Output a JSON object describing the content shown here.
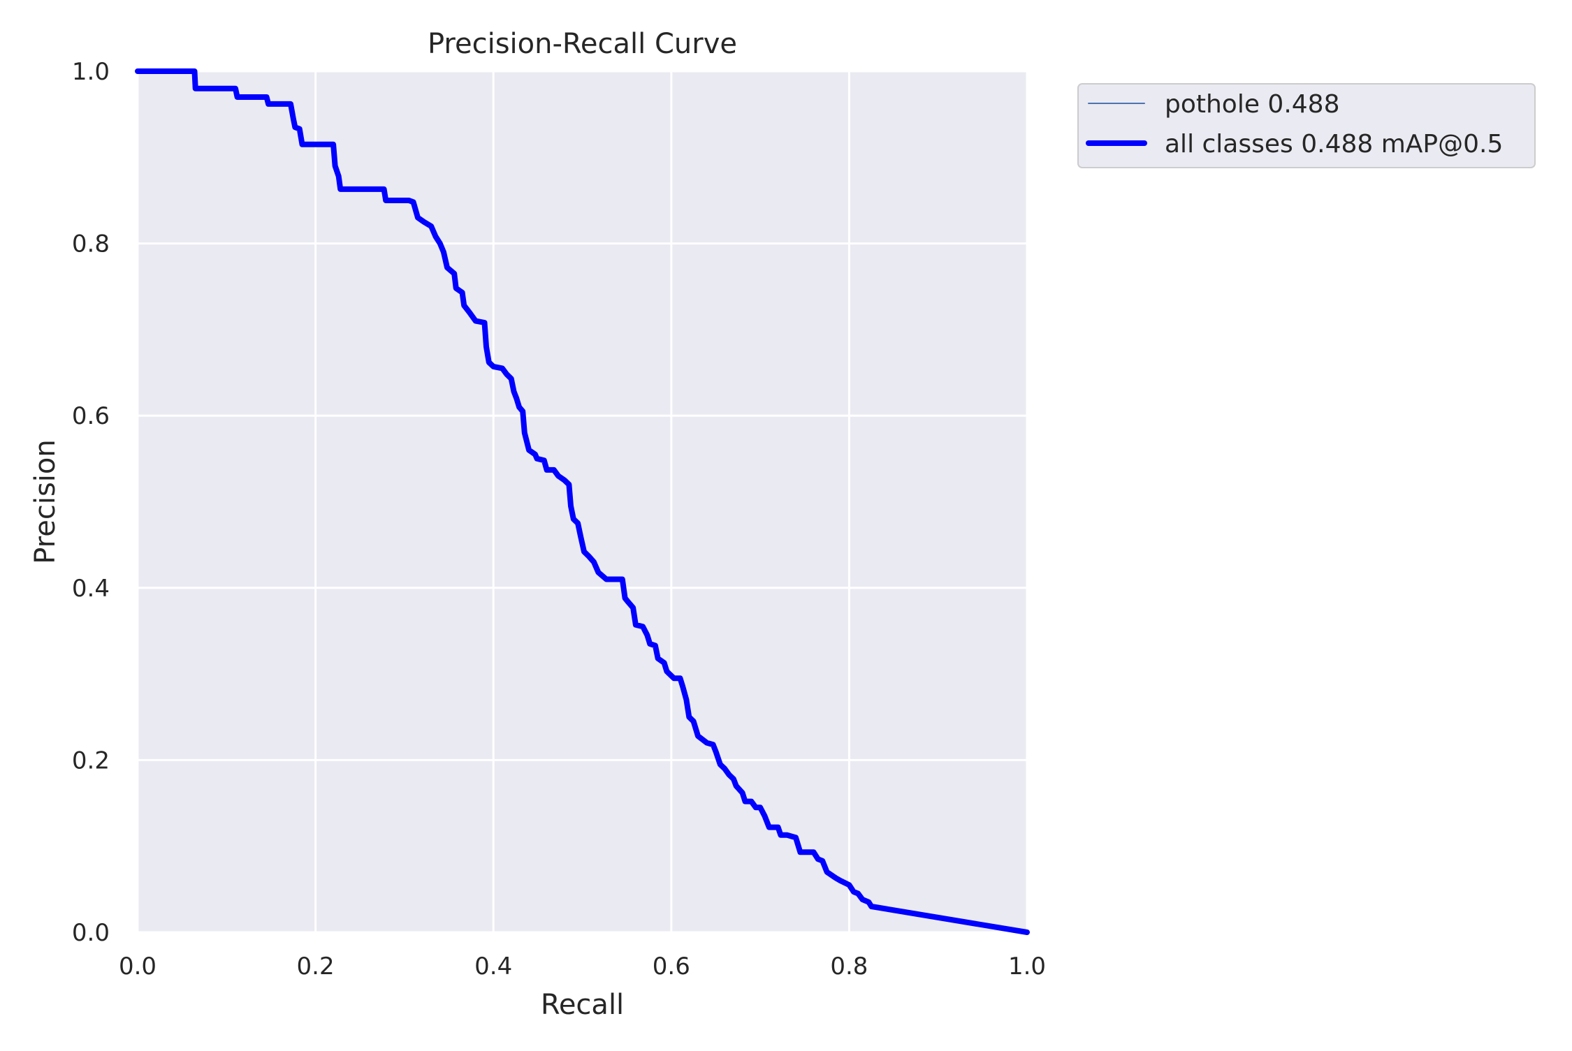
{
  "chart_data": {
    "type": "line",
    "title": "Precision-Recall Curve",
    "xlabel": "Recall",
    "ylabel": "Precision",
    "xlim": [
      0,
      1
    ],
    "ylim": [
      0,
      1
    ],
    "xticks": [
      "0.0",
      "0.2",
      "0.4",
      "0.6",
      "0.8",
      "1.0"
    ],
    "yticks": [
      "0.0",
      "0.2",
      "0.4",
      "0.6",
      "0.8",
      "1.0"
    ],
    "grid": true,
    "background": "#eaeaf2",
    "legend_position": "outside-top-right",
    "legend": [
      "pothole 0.488",
      "all classes 0.488 mAP@0.5"
    ],
    "series": [
      {
        "name": "pothole 0.488",
        "color": "#4c72b0",
        "points": [
          [
            0.0,
            1.0
          ],
          [
            0.064,
            1.0
          ],
          [
            0.065,
            0.98
          ],
          [
            0.11,
            0.98
          ],
          [
            0.112,
            0.97
          ],
          [
            0.145,
            0.97
          ],
          [
            0.147,
            0.962
          ],
          [
            0.172,
            0.962
          ],
          [
            0.175,
            0.945
          ],
          [
            0.177,
            0.935
          ],
          [
            0.182,
            0.933
          ],
          [
            0.185,
            0.915
          ],
          [
            0.22,
            0.915
          ],
          [
            0.222,
            0.89
          ],
          [
            0.226,
            0.878
          ],
          [
            0.228,
            0.863
          ],
          [
            0.277,
            0.863
          ],
          [
            0.279,
            0.85
          ],
          [
            0.305,
            0.85
          ],
          [
            0.31,
            0.848
          ],
          [
            0.315,
            0.83
          ],
          [
            0.322,
            0.825
          ],
          [
            0.33,
            0.82
          ],
          [
            0.335,
            0.808
          ],
          [
            0.34,
            0.8
          ],
          [
            0.344,
            0.79
          ],
          [
            0.348,
            0.772
          ],
          [
            0.356,
            0.765
          ],
          [
            0.358,
            0.748
          ],
          [
            0.365,
            0.743
          ],
          [
            0.367,
            0.728
          ],
          [
            0.373,
            0.72
          ],
          [
            0.38,
            0.71
          ],
          [
            0.39,
            0.708
          ],
          [
            0.392,
            0.68
          ],
          [
            0.395,
            0.662
          ],
          [
            0.4,
            0.657
          ],
          [
            0.41,
            0.655
          ],
          [
            0.415,
            0.648
          ],
          [
            0.42,
            0.643
          ],
          [
            0.423,
            0.628
          ],
          [
            0.426,
            0.62
          ],
          [
            0.429,
            0.61
          ],
          [
            0.433,
            0.605
          ],
          [
            0.435,
            0.58
          ],
          [
            0.44,
            0.56
          ],
          [
            0.447,
            0.555
          ],
          [
            0.449,
            0.55
          ],
          [
            0.457,
            0.548
          ],
          [
            0.46,
            0.537
          ],
          [
            0.468,
            0.537
          ],
          [
            0.473,
            0.53
          ],
          [
            0.48,
            0.525
          ],
          [
            0.485,
            0.52
          ],
          [
            0.487,
            0.495
          ],
          [
            0.49,
            0.48
          ],
          [
            0.495,
            0.475
          ],
          [
            0.498,
            0.46
          ],
          [
            0.502,
            0.442
          ],
          [
            0.507,
            0.437
          ],
          [
            0.513,
            0.43
          ],
          [
            0.518,
            0.418
          ],
          [
            0.527,
            0.41
          ],
          [
            0.545,
            0.41
          ],
          [
            0.548,
            0.388
          ],
          [
            0.552,
            0.383
          ],
          [
            0.557,
            0.377
          ],
          [
            0.56,
            0.357
          ],
          [
            0.568,
            0.355
          ],
          [
            0.573,
            0.345
          ],
          [
            0.576,
            0.335
          ],
          [
            0.582,
            0.333
          ],
          [
            0.585,
            0.318
          ],
          [
            0.592,
            0.313
          ],
          [
            0.595,
            0.303
          ],
          [
            0.603,
            0.295
          ],
          [
            0.61,
            0.295
          ],
          [
            0.613,
            0.285
          ],
          [
            0.617,
            0.27
          ],
          [
            0.62,
            0.25
          ],
          [
            0.625,
            0.245
          ],
          [
            0.63,
            0.228
          ],
          [
            0.64,
            0.22
          ],
          [
            0.647,
            0.218
          ],
          [
            0.65,
            0.21
          ],
          [
            0.655,
            0.195
          ],
          [
            0.66,
            0.19
          ],
          [
            0.665,
            0.183
          ],
          [
            0.67,
            0.178
          ],
          [
            0.673,
            0.17
          ],
          [
            0.68,
            0.162
          ],
          [
            0.683,
            0.152
          ],
          [
            0.69,
            0.152
          ],
          [
            0.695,
            0.145
          ],
          [
            0.7,
            0.145
          ],
          [
            0.705,
            0.135
          ],
          [
            0.71,
            0.122
          ],
          [
            0.72,
            0.122
          ],
          [
            0.723,
            0.113
          ],
          [
            0.73,
            0.113
          ],
          [
            0.74,
            0.11
          ],
          [
            0.745,
            0.093
          ],
          [
            0.76,
            0.093
          ],
          [
            0.765,
            0.085
          ],
          [
            0.77,
            0.083
          ],
          [
            0.775,
            0.07
          ],
          [
            0.785,
            0.063
          ],
          [
            0.79,
            0.06
          ],
          [
            0.8,
            0.055
          ],
          [
            0.805,
            0.047
          ],
          [
            0.81,
            0.045
          ],
          [
            0.815,
            0.038
          ],
          [
            0.822,
            0.035
          ],
          [
            0.825,
            0.03
          ],
          [
            1.0,
            0.0
          ]
        ]
      },
      {
        "name": "all classes 0.488 mAP@0.5",
        "color": "#0000ff",
        "points": [
          [
            0.0,
            1.0
          ],
          [
            0.064,
            1.0
          ],
          [
            0.065,
            0.98
          ],
          [
            0.11,
            0.98
          ],
          [
            0.112,
            0.97
          ],
          [
            0.145,
            0.97
          ],
          [
            0.147,
            0.962
          ],
          [
            0.172,
            0.962
          ],
          [
            0.175,
            0.945
          ],
          [
            0.177,
            0.935
          ],
          [
            0.182,
            0.933
          ],
          [
            0.185,
            0.915
          ],
          [
            0.22,
            0.915
          ],
          [
            0.222,
            0.89
          ],
          [
            0.226,
            0.878
          ],
          [
            0.228,
            0.863
          ],
          [
            0.277,
            0.863
          ],
          [
            0.279,
            0.85
          ],
          [
            0.305,
            0.85
          ],
          [
            0.31,
            0.848
          ],
          [
            0.315,
            0.83
          ],
          [
            0.322,
            0.825
          ],
          [
            0.33,
            0.82
          ],
          [
            0.335,
            0.808
          ],
          [
            0.34,
            0.8
          ],
          [
            0.344,
            0.79
          ],
          [
            0.348,
            0.772
          ],
          [
            0.356,
            0.765
          ],
          [
            0.358,
            0.748
          ],
          [
            0.365,
            0.743
          ],
          [
            0.367,
            0.728
          ],
          [
            0.373,
            0.72
          ],
          [
            0.38,
            0.71
          ],
          [
            0.39,
            0.708
          ],
          [
            0.392,
            0.68
          ],
          [
            0.395,
            0.662
          ],
          [
            0.4,
            0.657
          ],
          [
            0.41,
            0.655
          ],
          [
            0.415,
            0.648
          ],
          [
            0.42,
            0.643
          ],
          [
            0.423,
            0.628
          ],
          [
            0.426,
            0.62
          ],
          [
            0.429,
            0.61
          ],
          [
            0.433,
            0.605
          ],
          [
            0.435,
            0.58
          ],
          [
            0.44,
            0.56
          ],
          [
            0.447,
            0.555
          ],
          [
            0.449,
            0.55
          ],
          [
            0.457,
            0.548
          ],
          [
            0.46,
            0.537
          ],
          [
            0.468,
            0.537
          ],
          [
            0.473,
            0.53
          ],
          [
            0.48,
            0.525
          ],
          [
            0.485,
            0.52
          ],
          [
            0.487,
            0.495
          ],
          [
            0.49,
            0.48
          ],
          [
            0.495,
            0.475
          ],
          [
            0.498,
            0.46
          ],
          [
            0.502,
            0.442
          ],
          [
            0.507,
            0.437
          ],
          [
            0.513,
            0.43
          ],
          [
            0.518,
            0.418
          ],
          [
            0.527,
            0.41
          ],
          [
            0.545,
            0.41
          ],
          [
            0.548,
            0.388
          ],
          [
            0.552,
            0.383
          ],
          [
            0.557,
            0.377
          ],
          [
            0.56,
            0.357
          ],
          [
            0.568,
            0.355
          ],
          [
            0.573,
            0.345
          ],
          [
            0.576,
            0.335
          ],
          [
            0.582,
            0.333
          ],
          [
            0.585,
            0.318
          ],
          [
            0.592,
            0.313
          ],
          [
            0.595,
            0.303
          ],
          [
            0.603,
            0.295
          ],
          [
            0.61,
            0.295
          ],
          [
            0.613,
            0.285
          ],
          [
            0.617,
            0.27
          ],
          [
            0.62,
            0.25
          ],
          [
            0.625,
            0.245
          ],
          [
            0.63,
            0.228
          ],
          [
            0.64,
            0.22
          ],
          [
            0.647,
            0.218
          ],
          [
            0.65,
            0.21
          ],
          [
            0.655,
            0.195
          ],
          [
            0.66,
            0.19
          ],
          [
            0.665,
            0.183
          ],
          [
            0.67,
            0.178
          ],
          [
            0.673,
            0.17
          ],
          [
            0.68,
            0.162
          ],
          [
            0.683,
            0.152
          ],
          [
            0.69,
            0.152
          ],
          [
            0.695,
            0.145
          ],
          [
            0.7,
            0.145
          ],
          [
            0.705,
            0.135
          ],
          [
            0.71,
            0.122
          ],
          [
            0.72,
            0.122
          ],
          [
            0.723,
            0.113
          ],
          [
            0.73,
            0.113
          ],
          [
            0.74,
            0.11
          ],
          [
            0.745,
            0.093
          ],
          [
            0.76,
            0.093
          ],
          [
            0.765,
            0.085
          ],
          [
            0.77,
            0.083
          ],
          [
            0.775,
            0.07
          ],
          [
            0.785,
            0.063
          ],
          [
            0.79,
            0.06
          ],
          [
            0.8,
            0.055
          ],
          [
            0.805,
            0.047
          ],
          [
            0.81,
            0.045
          ],
          [
            0.815,
            0.038
          ],
          [
            0.822,
            0.035
          ],
          [
            0.825,
            0.03
          ],
          [
            1.0,
            0.0
          ]
        ]
      }
    ]
  }
}
